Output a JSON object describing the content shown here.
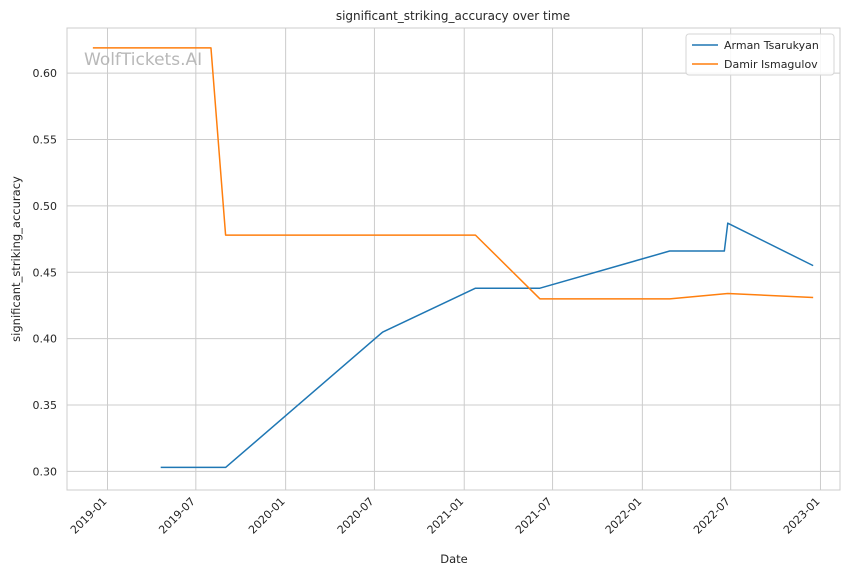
{
  "watermark": "WolfTickets.AI",
  "chart_data": {
    "type": "line",
    "title": "significant_striking_accuracy over time",
    "xlabel": "Date",
    "ylabel": "significant_striking_accuracy",
    "xlim": [
      "2018-10-10",
      "2023-02-10"
    ],
    "ylim": [
      0.286,
      0.634
    ],
    "x_ticks": [
      "2019-01",
      "2019-07",
      "2020-01",
      "2020-07",
      "2021-01",
      "2021-07",
      "2022-01",
      "2022-07",
      "2023-01"
    ],
    "y_ticks": [
      "0.30",
      "0.35",
      "0.40",
      "0.45",
      "0.50",
      "0.55",
      "0.60"
    ],
    "grid": true,
    "legend_position": "top-right",
    "series": [
      {
        "name": "Arman Tsarukyan",
        "color": "#1f77b4",
        "points": [
          {
            "x": "2019-04-20",
            "y": 0.303
          },
          {
            "x": "2019-08-31",
            "y": 0.303
          },
          {
            "x": "2020-07-18",
            "y": 0.405
          },
          {
            "x": "2021-01-24",
            "y": 0.438
          },
          {
            "x": "2021-06-05",
            "y": 0.438
          },
          {
            "x": "2022-02-26",
            "y": 0.466
          },
          {
            "x": "2022-06-18",
            "y": 0.466
          },
          {
            "x": "2022-06-25",
            "y": 0.487
          },
          {
            "x": "2022-12-17",
            "y": 0.455
          }
        ]
      },
      {
        "name": "Damir Ismagulov",
        "color": "#ff7f0e",
        "points": [
          {
            "x": "2018-12-02",
            "y": 0.619
          },
          {
            "x": "2019-08-01",
            "y": 0.619
          },
          {
            "x": "2019-08-31",
            "y": 0.478
          },
          {
            "x": "2021-01-24",
            "y": 0.478
          },
          {
            "x": "2021-06-05",
            "y": 0.43
          },
          {
            "x": "2022-02-26",
            "y": 0.43
          },
          {
            "x": "2022-06-25",
            "y": 0.434
          },
          {
            "x": "2022-12-17",
            "y": 0.431
          }
        ]
      }
    ]
  }
}
